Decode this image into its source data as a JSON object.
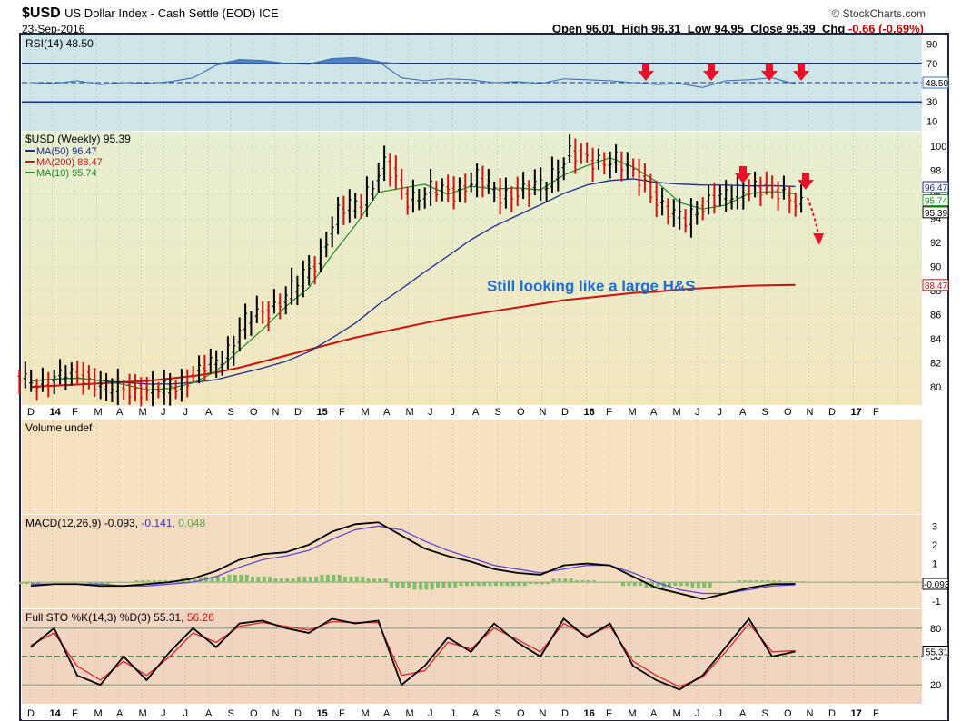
{
  "header": {
    "symbol": "$USD",
    "description": "US Dollar Index - Cash Settle (EOD) ICE",
    "date": "23-Sep-2016",
    "source": "© StockCharts.com",
    "open_label": "Open",
    "open": "96.01",
    "high_label": "High",
    "high": "96.31",
    "low_label": "Low",
    "low": "94.95",
    "close_label": "Close",
    "close": "95.39",
    "chg_label": "Chg",
    "chg": "-0.66 (-0.69%)"
  },
  "colors": {
    "rsi_bg": "#cfe6e8",
    "price_bg_top": "#e6f0d2",
    "price_bg_bottom": "#f3e6bd",
    "volume_bg": "#f7e2bf",
    "macd_bg": "#f4dcc0",
    "sto_bg": "#f1d5c0",
    "ma50": "#1a2a8c",
    "ma200": "#cc1111",
    "ma10": "#1e8a1e",
    "up_bar": "#000000",
    "down_bar": "#cc1111",
    "arrow": "#e8102a",
    "annotation": "#1e6ed6",
    "frame": "#202840"
  },
  "chart_data": [
    {
      "type": "line",
      "panel": "RSI",
      "legend": "RSI(14) 48.50",
      "value_tag": "48.50",
      "yticks": [
        10,
        30,
        50,
        70,
        90
      ],
      "ylim": [
        0,
        100
      ],
      "reference_lines": [
        70,
        30
      ],
      "x": [
        "2013-12",
        "2014-01",
        "2014-02",
        "2014-03",
        "2014-04",
        "2014-05",
        "2014-06",
        "2014-07",
        "2014-08",
        "2014-09",
        "2014-10",
        "2014-11",
        "2014-12",
        "2015-01",
        "2015-02",
        "2015-03",
        "2015-04",
        "2015-05",
        "2015-06",
        "2015-07",
        "2015-08",
        "2015-09",
        "2015-10",
        "2015-11",
        "2015-12",
        "2016-01",
        "2016-02",
        "2016-03",
        "2016-04",
        "2016-05",
        "2016-06",
        "2016-07",
        "2016-08",
        "2016-09"
      ],
      "values": [
        50,
        49,
        52,
        48,
        50,
        49,
        51,
        55,
        68,
        74,
        73,
        70,
        69,
        75,
        76,
        72,
        55,
        52,
        54,
        53,
        50,
        51,
        49,
        54,
        53,
        52,
        50,
        48,
        49,
        45,
        52,
        53,
        55,
        48.5
      ]
    },
    {
      "type": "bar",
      "panel": "Price",
      "title": "$USD (Weekly) 95.39",
      "series": [
        {
          "name": "MA(50) 96.47",
          "color": "#1a2a8c",
          "tag": "96.47"
        },
        {
          "name": "MA(200) 88.47",
          "color": "#cc1111",
          "tag": "88.47"
        },
        {
          "name": "MA(10) 95.74",
          "color": "#1e8a1e",
          "tag": "95.74"
        }
      ],
      "close_tag": "95.39",
      "yticks": [
        80,
        82,
        84,
        86,
        88,
        90,
        92,
        94,
        96,
        98,
        100
      ],
      "ylim": [
        78.5,
        101.2
      ],
      "x": [
        "2013-12",
        "2014-01",
        "2014-02",
        "2014-03",
        "2014-04",
        "2014-05",
        "2014-06",
        "2014-07",
        "2014-08",
        "2014-09",
        "2014-10",
        "2014-11",
        "2014-12",
        "2015-01",
        "2015-02",
        "2015-03",
        "2015-04",
        "2015-05",
        "2015-06",
        "2015-07",
        "2015-08",
        "2015-09",
        "2015-10",
        "2015-11",
        "2015-12",
        "2016-01",
        "2016-02",
        "2016-03",
        "2016-04",
        "2016-05",
        "2016-06",
        "2016-07",
        "2016-08",
        "2016-09"
      ],
      "close": [
        80.5,
        80.8,
        80.9,
        79.9,
        79.8,
        79.6,
        80.2,
        81.2,
        82.5,
        85.5,
        86.3,
        88.2,
        90.2,
        94.5,
        95.5,
        98.5,
        95.5,
        96.5,
        96.0,
        97.5,
        95.8,
        96.3,
        97.0,
        99.5,
        98.6,
        99.0,
        97.2,
        95.0,
        93.8,
        95.5,
        96.0,
        96.7,
        96.0,
        95.39
      ],
      "ma200": [
        80.0,
        80.1,
        80.2,
        80.3,
        80.4,
        80.5,
        80.7,
        80.9,
        81.2,
        81.6,
        82.1,
        82.6,
        83.1,
        83.6,
        84.1,
        84.5,
        84.9,
        85.3,
        85.7,
        86.0,
        86.3,
        86.6,
        86.9,
        87.2,
        87.4,
        87.6,
        87.8,
        87.9,
        88.1,
        88.2,
        88.3,
        88.4,
        88.45,
        88.47
      ],
      "annotations": [
        {
          "text": "Still looking like a large H&S",
          "x": "2015-09",
          "y": 88.4
        }
      ]
    },
    {
      "type": "bar",
      "panel": "Volume",
      "legend": "Volume undef"
    },
    {
      "type": "line",
      "panel": "MACD",
      "legend": "MACD(12,26,9)",
      "legend_values": [
        "-0.093",
        "-0.141",
        "0.048"
      ],
      "value_tag": "-0.093",
      "yticks": [
        -1,
        0,
        1,
        2,
        3
      ],
      "ylim": [
        -1.4,
        3.6
      ],
      "x": [
        "2013-12",
        "2014-01",
        "2014-02",
        "2014-03",
        "2014-04",
        "2014-05",
        "2014-06",
        "2014-07",
        "2014-08",
        "2014-09",
        "2014-10",
        "2014-11",
        "2014-12",
        "2015-01",
        "2015-02",
        "2015-03",
        "2015-04",
        "2015-05",
        "2015-06",
        "2015-07",
        "2015-08",
        "2015-09",
        "2015-10",
        "2015-11",
        "2015-12",
        "2016-01",
        "2016-02",
        "2016-03",
        "2016-04",
        "2016-05",
        "2016-06",
        "2016-07",
        "2016-08",
        "2016-09"
      ],
      "series": [
        {
          "name": "MACD",
          "values": [
            -0.2,
            -0.1,
            -0.1,
            -0.2,
            -0.2,
            -0.1,
            0.0,
            0.2,
            0.6,
            1.2,
            1.5,
            1.6,
            2.0,
            2.7,
            3.1,
            3.2,
            2.5,
            1.8,
            1.4,
            1.1,
            0.7,
            0.5,
            0.4,
            0.9,
            1.0,
            0.9,
            0.3,
            -0.3,
            -0.6,
            -0.9,
            -0.6,
            -0.3,
            -0.1,
            -0.093
          ]
        },
        {
          "name": "Signal",
          "values": [
            -0.1,
            -0.1,
            -0.1,
            -0.1,
            -0.2,
            -0.2,
            -0.1,
            0.0,
            0.3,
            0.8,
            1.2,
            1.4,
            1.7,
            2.3,
            2.8,
            3.0,
            2.8,
            2.2,
            1.7,
            1.3,
            0.9,
            0.7,
            0.5,
            0.7,
            0.9,
            0.9,
            0.5,
            0.0,
            -0.4,
            -0.6,
            -0.6,
            -0.4,
            -0.2,
            -0.141
          ]
        },
        {
          "name": "Histogram",
          "values": [
            -0.1,
            0.0,
            0.0,
            -0.1,
            0.0,
            0.1,
            0.1,
            0.2,
            0.3,
            0.4,
            0.3,
            0.2,
            0.3,
            0.4,
            0.3,
            0.2,
            -0.3,
            -0.4,
            -0.3,
            -0.2,
            -0.2,
            -0.2,
            -0.1,
            0.2,
            0.1,
            0.0,
            -0.2,
            -0.3,
            -0.2,
            -0.3,
            0.0,
            0.1,
            0.1,
            0.048
          ]
        }
      ]
    },
    {
      "type": "line",
      "panel": "Full STO",
      "legend": "Full STO %K(14,3) %D(3)",
      "legend_values": [
        "55.31",
        "56.26"
      ],
      "value_tag": "55.31",
      "yticks": [
        20,
        50,
        80
      ],
      "ylim": [
        0,
        100
      ],
      "reference_lines": [
        80,
        50,
        20
      ],
      "x": [
        "2013-12",
        "2014-01",
        "2014-02",
        "2014-03",
        "2014-04",
        "2014-05",
        "2014-06",
        "2014-07",
        "2014-08",
        "2014-09",
        "2014-10",
        "2014-11",
        "2014-12",
        "2015-01",
        "2015-02",
        "2015-03",
        "2015-04",
        "2015-05",
        "2015-06",
        "2015-07",
        "2015-08",
        "2015-09",
        "2015-10",
        "2015-11",
        "2015-12",
        "2016-01",
        "2016-02",
        "2016-03",
        "2016-04",
        "2016-05",
        "2016-06",
        "2016-07",
        "2016-08",
        "2016-09"
      ],
      "series": [
        {
          "name": "%K",
          "values": [
            60,
            80,
            30,
            20,
            50,
            25,
            55,
            80,
            60,
            85,
            88,
            80,
            75,
            90,
            85,
            88,
            20,
            40,
            70,
            55,
            85,
            65,
            50,
            90,
            70,
            85,
            40,
            25,
            15,
            30,
            60,
            90,
            50,
            55.31
          ]
        },
        {
          "name": "%D",
          "values": [
            62,
            75,
            40,
            25,
            45,
            30,
            50,
            75,
            65,
            82,
            86,
            82,
            78,
            87,
            86,
            86,
            30,
            35,
            65,
            58,
            80,
            68,
            55,
            85,
            72,
            82,
            45,
            30,
            18,
            28,
            55,
            85,
            55,
            56.26
          ]
        }
      ]
    }
  ],
  "x_axis": {
    "labels": [
      "D",
      "14",
      "F",
      "M",
      "A",
      "M",
      "J",
      "J",
      "A",
      "S",
      "O",
      "N",
      "D",
      "15",
      "F",
      "M",
      "A",
      "M",
      "J",
      "J",
      "A",
      "S",
      "O",
      "N",
      "D",
      "16",
      "F",
      "M",
      "A",
      "M",
      "J",
      "J",
      "A",
      "S",
      "O",
      "N",
      "D",
      "17",
      "F"
    ],
    "bold": [
      "14",
      "15",
      "16",
      "17"
    ]
  }
}
